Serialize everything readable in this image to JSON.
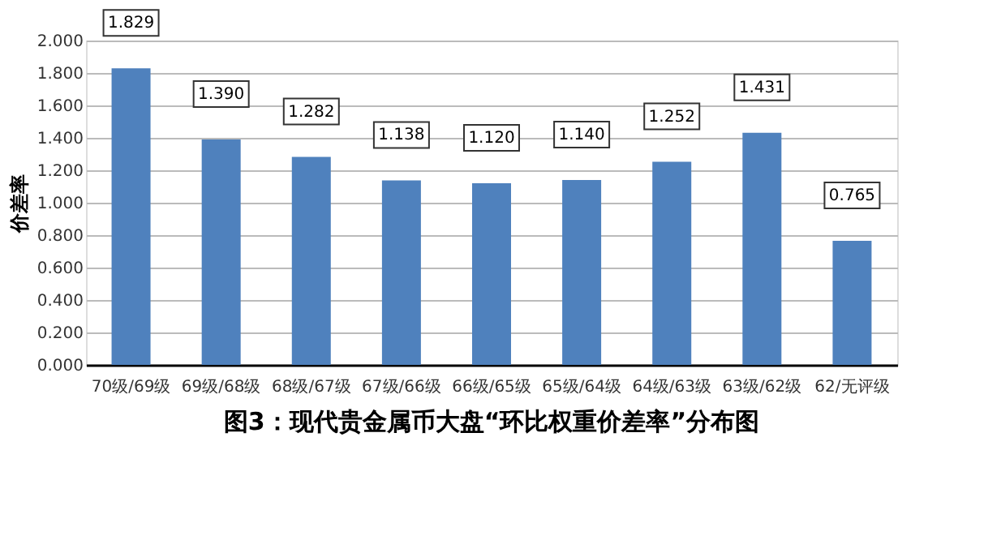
{
  "chart_data": {
    "type": "bar",
    "title": "图3：现代贵金属币大盘“环比权重价差率”分布图",
    "ylabel": "价差率",
    "categories": [
      "70级/69级",
      "69级/68级",
      "68级/67级",
      "67级/66级",
      "66级/65级",
      "65级/64级",
      "64级/63级",
      "63级/62级",
      "62/无评级"
    ],
    "values": [
      1.829,
      1.39,
      1.282,
      1.138,
      1.12,
      1.14,
      1.252,
      1.431,
      0.765
    ],
    "value_labels": [
      "1.829",
      "1.390",
      "1.282",
      "1.138",
      "1.120",
      "1.140",
      "1.252",
      "1.431",
      "0.765"
    ],
    "color": "#4f81bd",
    "ylim": [
      0,
      2.0
    ],
    "data_labels": true,
    "yticks": [
      {
        "value": 0,
        "label": "0.000"
      },
      {
        "value": 0.2,
        "label": "0.200"
      },
      {
        "value": 0.4,
        "label": "0.400"
      },
      {
        "value": 0.6,
        "label": "0.600"
      },
      {
        "value": 0.8,
        "label": "0.800"
      },
      {
        "value": 1.0,
        "label": "1.000"
      },
      {
        "value": 1.2,
        "label": "1.200"
      },
      {
        "value": 1.4,
        "label": "1.400"
      },
      {
        "value": 1.6,
        "label": "1.600"
      },
      {
        "value": 1.8,
        "label": "1.800"
      },
      {
        "value": 2.0,
        "label": "2.000"
      }
    ],
    "grid": "y"
  }
}
